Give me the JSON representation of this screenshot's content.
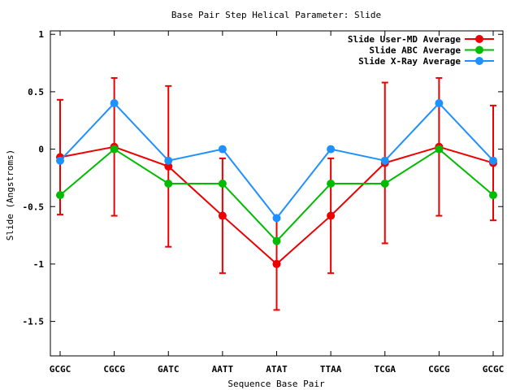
{
  "chart_data": {
    "type": "line",
    "title": "Base Pair Step Helical Parameter: Slide",
    "xlabel": "Sequence Base Pair",
    "ylabel": "Slide (Angstroms)",
    "categories": [
      "GCGC",
      "CGCG",
      "GATC",
      "AATT",
      "ATAT",
      "TTAA",
      "TCGA",
      "CGCG",
      "GCGC"
    ],
    "ylim": [
      -1.8,
      1.03
    ],
    "yticks": [
      {
        "value": 1,
        "label": "1"
      },
      {
        "value": 0.5,
        "label": "0.5"
      },
      {
        "value": 0,
        "label": "0"
      },
      {
        "value": -0.5,
        "label": "-0.5"
      },
      {
        "value": -1,
        "label": "-1"
      },
      {
        "value": -1.5,
        "label": "-1.5"
      }
    ],
    "grid": false,
    "legend_position": "top-right",
    "series": [
      {
        "name": "Slide User-MD Average",
        "color": "#ee0000",
        "values": [
          -0.07,
          0.02,
          -0.15,
          -0.58,
          -1.0,
          -0.58,
          -0.12,
          0.02,
          -0.12
        ],
        "error": [
          0.5,
          0.6,
          0.7,
          0.5,
          0.4,
          0.5,
          0.7,
          0.6,
          0.5
        ]
      },
      {
        "name": "Slide ABC Average",
        "color": "#00bb00",
        "values": [
          -0.4,
          0.0,
          -0.3,
          -0.3,
          -0.8,
          -0.3,
          -0.3,
          0.0,
          -0.4
        ]
      },
      {
        "name": "Slide X-Ray Average",
        "color": "#1e90ff",
        "values": [
          -0.1,
          0.4,
          -0.1,
          0.0,
          -0.6,
          0.0,
          -0.1,
          0.4,
          -0.1
        ]
      }
    ]
  }
}
